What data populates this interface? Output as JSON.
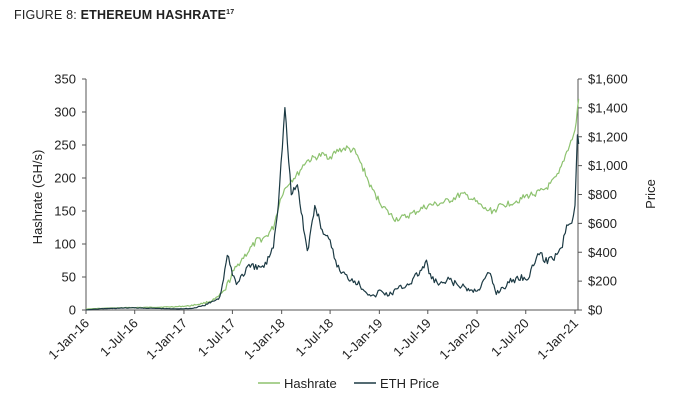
{
  "figure": {
    "prefix": "FIGURE 8:",
    "title": "ETHEREUM HASHRATE",
    "footnote": "17"
  },
  "chart_data": {
    "type": "line",
    "xlabel": "",
    "ylabel": "Hashrate (GH/s)",
    "y2label": "Price",
    "x_ticks": [
      "1-Jan-16",
      "1-Jul-16",
      "1-Jan-17",
      "1-Jul-17",
      "1-Jan-18",
      "1-Jul-18",
      "1-Jan-19",
      "1-Jul-19",
      "1-Jan-20",
      "1-Jul-20",
      "1-Jan-21"
    ],
    "y_ticks": [
      "0",
      "50",
      "100",
      "150",
      "200",
      "250",
      "300",
      "350"
    ],
    "y2_ticks": [
      "$0",
      "$200",
      "$400",
      "$600",
      "$800",
      "$1,000",
      "$1,200",
      "$1,400",
      "$1,600"
    ],
    "ylim": [
      0,
      350
    ],
    "y2lim": [
      0,
      1600
    ],
    "colors": {
      "hashrate": "#8dc26f",
      "price": "#1c3a44",
      "axis": "#555555"
    },
    "legend_position": "bottom",
    "series": [
      {
        "name": "Hashrate",
        "axis": "left",
        "x": [
          "2016-01-01",
          "2016-03-01",
          "2016-06-01",
          "2016-09-01",
          "2016-12-01",
          "2017-01-15",
          "2017-03-01",
          "2017-04-01",
          "2017-05-01",
          "2017-06-01",
          "2017-07-01",
          "2017-08-01",
          "2017-09-01",
          "2017-10-01",
          "2017-11-01",
          "2017-12-01",
          "2018-01-01",
          "2018-02-01",
          "2018-03-01",
          "2018-04-01",
          "2018-05-01",
          "2018-06-01",
          "2018-07-01",
          "2018-08-01",
          "2018-09-01",
          "2018-10-01",
          "2018-11-01",
          "2018-12-01",
          "2019-01-01",
          "2019-02-01",
          "2019-03-01",
          "2019-04-01",
          "2019-05-01",
          "2019-06-01",
          "2019-07-01",
          "2019-08-01",
          "2019-09-01",
          "2019-10-01",
          "2019-11-01",
          "2019-12-01",
          "2020-01-01",
          "2020-02-01",
          "2020-03-01",
          "2020-04-01",
          "2020-05-01",
          "2020-06-01",
          "2020-07-01",
          "2020-08-01",
          "2020-09-01",
          "2020-10-01",
          "2020-11-01",
          "2020-12-01",
          "2021-01-01",
          "2021-01-15"
        ],
        "values": [
          1.5,
          2.5,
          3.5,
          4,
          5,
          6,
          9,
          12,
          17,
          28,
          55,
          75,
          90,
          105,
          110,
          125,
          175,
          195,
          205,
          225,
          230,
          235,
          232,
          242,
          245,
          240,
          215,
          185,
          165,
          148,
          138,
          140,
          145,
          152,
          158,
          160,
          163,
          168,
          175,
          172,
          162,
          152,
          150,
          158,
          162,
          166,
          172,
          176,
          180,
          190,
          205,
          240,
          270,
          320
        ]
      },
      {
        "name": "ETH Price",
        "axis": "right",
        "x": [
          "2016-01-01",
          "2016-03-01",
          "2016-06-15",
          "2016-09-01",
          "2016-12-01",
          "2017-02-01",
          "2017-03-15",
          "2017-04-15",
          "2017-05-15",
          "2017-06-12",
          "2017-07-16",
          "2017-08-01",
          "2017-09-01",
          "2017-10-01",
          "2017-11-01",
          "2017-12-01",
          "2017-12-20",
          "2018-01-13",
          "2018-02-06",
          "2018-03-01",
          "2018-04-07",
          "2018-05-05",
          "2018-06-01",
          "2018-07-01",
          "2018-08-01",
          "2018-09-01",
          "2018-10-01",
          "2018-11-20",
          "2018-12-14",
          "2019-01-01",
          "2019-02-06",
          "2019-03-01",
          "2019-04-01",
          "2019-05-01",
          "2019-06-26",
          "2019-07-15",
          "2019-08-15",
          "2019-09-20",
          "2019-10-20",
          "2019-11-20",
          "2019-12-18",
          "2020-01-15",
          "2020-02-15",
          "2020-03-13",
          "2020-04-15",
          "2020-05-15",
          "2020-06-15",
          "2020-07-15",
          "2020-08-15",
          "2020-09-15",
          "2020-10-15",
          "2020-11-15",
          "2020-12-01",
          "2020-12-20",
          "2021-01-01",
          "2021-01-10",
          "2021-01-15"
        ],
        "values": [
          1,
          9,
          15,
          12,
          8,
          11,
          30,
          55,
          90,
          370,
          180,
          230,
          300,
          290,
          310,
          450,
          750,
          1400,
          800,
          870,
          400,
          720,
          560,
          460,
          290,
          230,
          210,
          120,
          90,
          135,
          105,
          135,
          165,
          200,
          320,
          220,
          170,
          210,
          170,
          150,
          130,
          165,
          260,
          120,
          170,
          210,
          230,
          230,
          400,
          340,
          370,
          450,
          600,
          620,
          730,
          1220,
          1150
        ]
      }
    ]
  },
  "legend": [
    {
      "label": "Hashrate"
    },
    {
      "label": "ETH Price"
    }
  ]
}
